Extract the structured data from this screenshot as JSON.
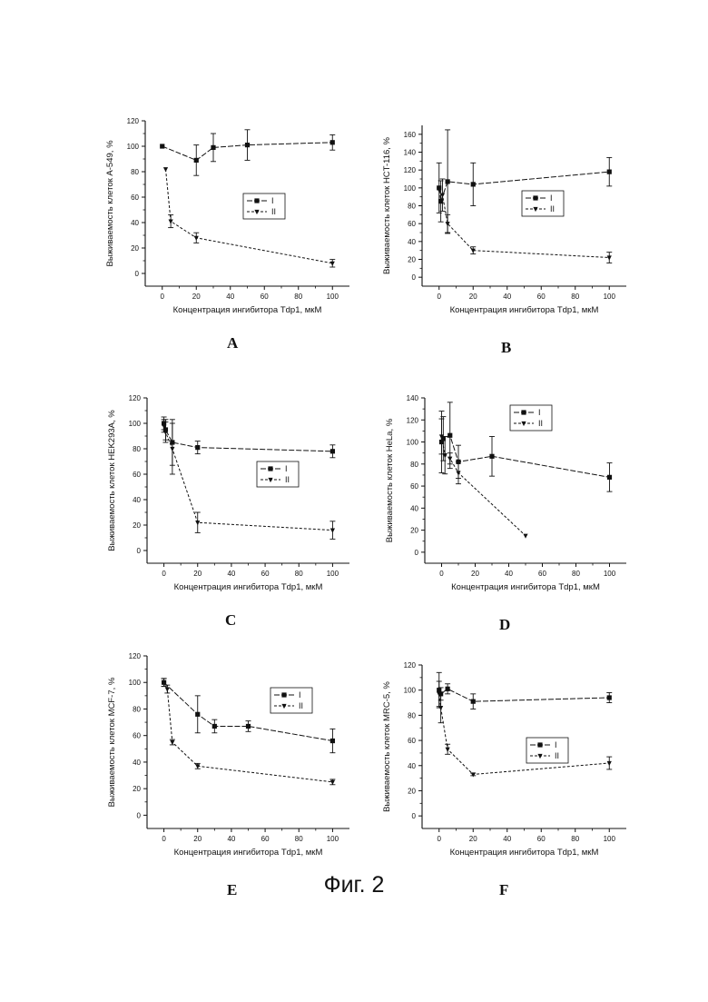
{
  "figure_caption": "Фиг. 2",
  "chart_data": [
    {
      "panel": "A",
      "type": "line",
      "ylabel": "Выживаемость клеток A-549, %",
      "xlabel": "Концентрация ингибитора Tdp1, мкМ",
      "xlim": [
        -10,
        110
      ],
      "ylim": [
        -10,
        120
      ],
      "xticks": [
        "0",
        "20",
        "40",
        "60",
        "80",
        "100"
      ],
      "yticks": [
        "0",
        "20",
        "40",
        "60",
        "80",
        "100",
        "120"
      ],
      "legend": [
        "I",
        "II"
      ],
      "series": [
        {
          "name": "I",
          "x": [
            0,
            20,
            30,
            50,
            100
          ],
          "y": [
            100,
            89,
            99,
            101,
            103
          ],
          "err": [
            0,
            12,
            11,
            12,
            6
          ]
        },
        {
          "name": "II",
          "x": [
            2,
            5,
            20,
            100
          ],
          "y": [
            82,
            41,
            28,
            8
          ],
          "err": [
            0,
            5,
            4,
            3
          ]
        }
      ]
    },
    {
      "panel": "B",
      "type": "line",
      "ylabel": "Выживаемость клеток HCT-116, %",
      "xlabel": "Концентрация ингибитора Tdp1, мкМ",
      "xlim": [
        -10,
        110
      ],
      "ylim": [
        -10,
        170
      ],
      "xticks": [
        "0",
        "20",
        "40",
        "60",
        "80",
        "100"
      ],
      "yticks": [
        "0",
        "20",
        "40",
        "60",
        "80",
        "100",
        "120",
        "140",
        "160"
      ],
      "legend": [
        "I",
        "II"
      ],
      "series": [
        {
          "name": "I",
          "x": [
            0,
            1,
            5,
            20,
            100
          ],
          "y": [
            100,
            85,
            107,
            104,
            118
          ],
          "err": [
            28,
            23,
            58,
            24,
            16
          ]
        },
        {
          "name": "II",
          "x": [
            0,
            2,
            5,
            20,
            100
          ],
          "y": [
            98,
            92,
            60,
            30,
            22
          ],
          "err": [
            0,
            18,
            10,
            4,
            6
          ]
        }
      ]
    },
    {
      "panel": "C",
      "type": "line",
      "ylabel": "Выживаемость клеток HEK293A, %",
      "xlabel": "Концентрация ингибитора Tdp1, мкМ",
      "xlim": [
        -10,
        110
      ],
      "ylim": [
        -10,
        120
      ],
      "xticks": [
        "0",
        "20",
        "40",
        "60",
        "80",
        "100"
      ],
      "yticks": [
        "0",
        "20",
        "40",
        "60",
        "80",
        "100",
        "120"
      ],
      "legend": [
        "I",
        "II"
      ],
      "series": [
        {
          "name": "I",
          "x": [
            0,
            1,
            5,
            20,
            100
          ],
          "y": [
            100,
            95,
            85,
            81,
            78
          ],
          "err": [
            5,
            8,
            18,
            5,
            5
          ]
        },
        {
          "name": "II",
          "x": [
            0,
            1,
            5,
            20,
            100
          ],
          "y": [
            98,
            93,
            80,
            22,
            16
          ],
          "err": [
            5,
            8,
            20,
            8,
            7
          ]
        }
      ]
    },
    {
      "panel": "D",
      "type": "line",
      "ylabel": "Выживаемость клеток HeLa, %",
      "xlabel": "Концентрация ингибитора Tdp1, мкМ",
      "xlim": [
        -10,
        110
      ],
      "ylim": [
        -10,
        140
      ],
      "xticks": [
        "0",
        "20",
        "40",
        "60",
        "80",
        "100"
      ],
      "yticks": [
        "0",
        "20",
        "40",
        "60",
        "80",
        "100",
        "120",
        "140"
      ],
      "legend": [
        "I",
        "II"
      ],
      "series": [
        {
          "name": "I",
          "x": [
            0,
            1,
            5,
            10,
            30,
            100
          ],
          "y": [
            100,
            103,
            106,
            82,
            87,
            68
          ],
          "err": [
            28,
            20,
            30,
            15,
            18,
            13
          ]
        },
        {
          "name": "II",
          "x": [
            0,
            2,
            5,
            10,
            50
          ],
          "y": [
            105,
            88,
            85,
            72,
            15
          ],
          "err": [
            16,
            17,
            5,
            10,
            0
          ]
        }
      ]
    },
    {
      "panel": "E",
      "type": "line",
      "ylabel": "Выживаемость клеток MCF-7, %",
      "xlabel": "Концентрация ингибитора Tdp1, мкМ",
      "xlim": [
        -10,
        110
      ],
      "ylim": [
        -10,
        120
      ],
      "xticks": [
        "0",
        "20",
        "40",
        "60",
        "80",
        "100"
      ],
      "yticks": [
        "0",
        "20",
        "40",
        "60",
        "80",
        "100",
        "120"
      ],
      "legend": [
        "I",
        "II"
      ],
      "series": [
        {
          "name": "I",
          "x": [
            0,
            20,
            30,
            50,
            100
          ],
          "y": [
            100,
            76,
            67,
            67,
            56
          ],
          "err": [
            3,
            14,
            5,
            4,
            9
          ]
        },
        {
          "name": "II",
          "x": [
            0,
            2,
            5,
            20,
            100
          ],
          "y": [
            100,
            95,
            55,
            37,
            25
          ],
          "err": [
            3,
            3,
            2,
            2,
            2
          ]
        }
      ]
    },
    {
      "panel": "F",
      "type": "line",
      "ylabel": "Выживаемость клеток MRC-5, %",
      "xlabel": "Концентрация ингибитора Tdp1, мкМ",
      "xlim": [
        -10,
        110
      ],
      "ylim": [
        -10,
        120
      ],
      "xticks": [
        "0",
        "20",
        "40",
        "60",
        "80",
        "100"
      ],
      "yticks": [
        "0",
        "20",
        "40",
        "60",
        "80",
        "100",
        "120"
      ],
      "legend": [
        "I",
        "II"
      ],
      "series": [
        {
          "name": "I",
          "x": [
            0,
            1,
            5,
            20,
            100
          ],
          "y": [
            100,
            97,
            101,
            91,
            94
          ],
          "err": [
            14,
            5,
            4,
            6,
            4
          ]
        },
        {
          "name": "II",
          "x": [
            0,
            1,
            5,
            20,
            100
          ],
          "y": [
            97,
            86,
            53,
            33,
            42
          ],
          "err": [
            10,
            12,
            4,
            1,
            5
          ]
        }
      ]
    }
  ]
}
